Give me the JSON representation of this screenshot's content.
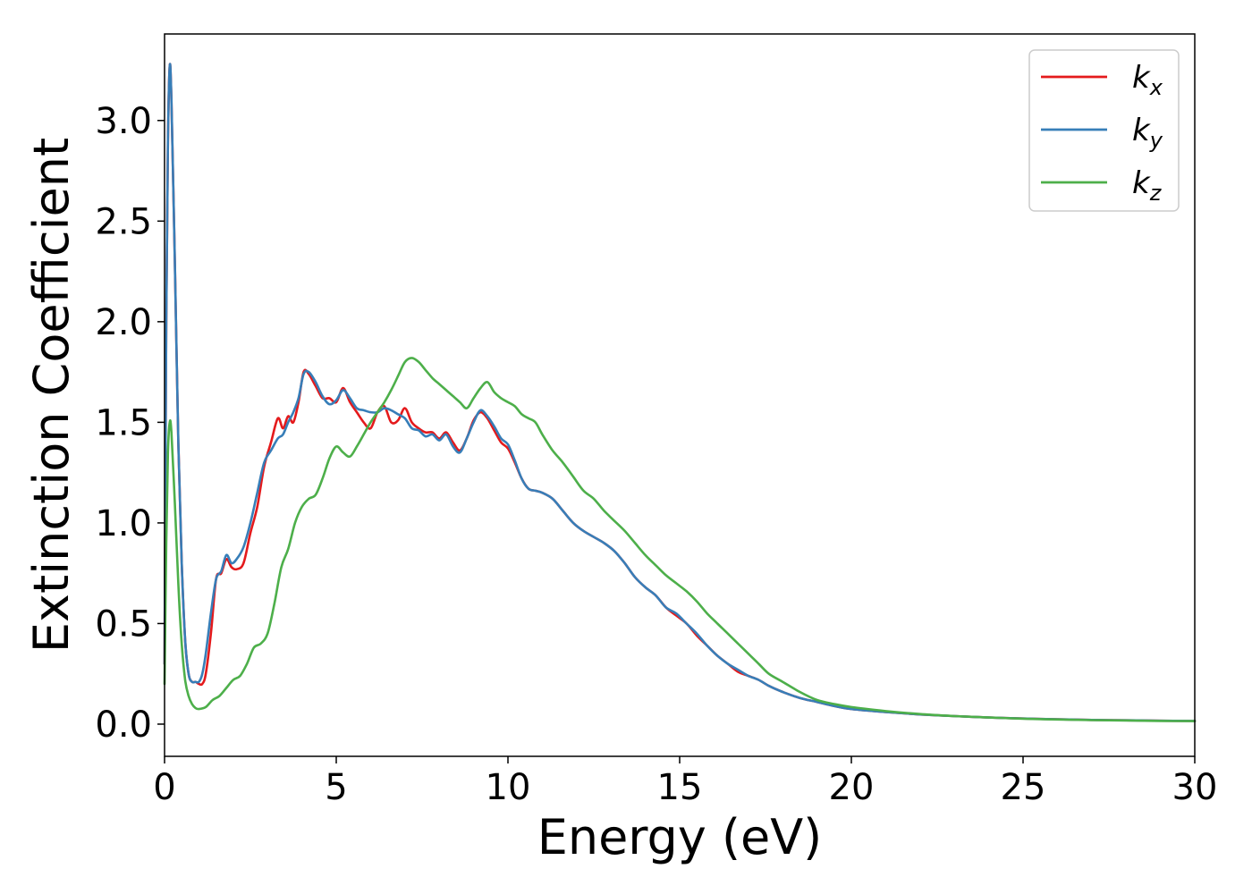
{
  "chart_data": {
    "type": "line",
    "title": "",
    "xlabel": "Energy (eV)",
    "ylabel": "Extinction Coefficient",
    "xlim": [
      0,
      30
    ],
    "ylim": [
      -0.16,
      3.43
    ],
    "xticks": [
      0,
      5,
      10,
      15,
      20,
      25,
      30
    ],
    "xtick_labels": [
      "0",
      "5",
      "10",
      "15",
      "20",
      "25",
      "30"
    ],
    "yticks": [
      0.0,
      0.5,
      1.0,
      1.5,
      2.0,
      2.5,
      3.0
    ],
    "ytick_labels": [
      "0.0",
      "0.5",
      "1.0",
      "1.5",
      "2.0",
      "2.5",
      "3.0"
    ],
    "grid": false,
    "legend_position": "top-right",
    "series": [
      {
        "name": "k",
        "subscript": "x",
        "color": "#e41a1c",
        "points": [
          [
            0,
            0.3
          ],
          [
            0.05,
            2.0
          ],
          [
            0.1,
            2.9
          ],
          [
            0.15,
            3.27
          ],
          [
            0.2,
            3.1
          ],
          [
            0.3,
            2.3
          ],
          [
            0.4,
            1.4
          ],
          [
            0.5,
            0.8
          ],
          [
            0.6,
            0.42
          ],
          [
            0.7,
            0.25
          ],
          [
            0.8,
            0.21
          ],
          [
            0.9,
            0.21
          ],
          [
            1.0,
            0.2
          ],
          [
            1.1,
            0.2
          ],
          [
            1.2,
            0.25
          ],
          [
            1.35,
            0.45
          ],
          [
            1.5,
            0.72
          ],
          [
            1.65,
            0.75
          ],
          [
            1.8,
            0.82
          ],
          [
            1.95,
            0.78
          ],
          [
            2.1,
            0.77
          ],
          [
            2.3,
            0.8
          ],
          [
            2.5,
            0.95
          ],
          [
            2.7,
            1.08
          ],
          [
            2.9,
            1.28
          ],
          [
            3.1,
            1.4
          ],
          [
            3.3,
            1.52
          ],
          [
            3.45,
            1.47
          ],
          [
            3.6,
            1.53
          ],
          [
            3.75,
            1.5
          ],
          [
            3.9,
            1.6
          ],
          [
            4.05,
            1.75
          ],
          [
            4.2,
            1.74
          ],
          [
            4.4,
            1.68
          ],
          [
            4.6,
            1.62
          ],
          [
            4.8,
            1.62
          ],
          [
            5.0,
            1.6
          ],
          [
            5.2,
            1.67
          ],
          [
            5.4,
            1.6
          ],
          [
            5.6,
            1.55
          ],
          [
            5.8,
            1.5
          ],
          [
            6.0,
            1.47
          ],
          [
            6.2,
            1.55
          ],
          [
            6.4,
            1.58
          ],
          [
            6.6,
            1.5
          ],
          [
            6.8,
            1.51
          ],
          [
            7.0,
            1.57
          ],
          [
            7.2,
            1.5
          ],
          [
            7.4,
            1.47
          ],
          [
            7.6,
            1.45
          ],
          [
            7.8,
            1.45
          ],
          [
            8.0,
            1.42
          ],
          [
            8.2,
            1.45
          ],
          [
            8.4,
            1.4
          ],
          [
            8.6,
            1.36
          ],
          [
            8.8,
            1.42
          ],
          [
            9.0,
            1.51
          ],
          [
            9.2,
            1.55
          ],
          [
            9.4,
            1.52
          ],
          [
            9.6,
            1.46
          ],
          [
            9.8,
            1.4
          ],
          [
            10.0,
            1.37
          ],
          [
            10.2,
            1.3
          ],
          [
            10.4,
            1.22
          ],
          [
            10.6,
            1.17
          ],
          [
            10.8,
            1.16
          ],
          [
            11.0,
            1.15
          ],
          [
            11.3,
            1.12
          ],
          [
            11.6,
            1.06
          ],
          [
            11.9,
            1.0
          ],
          [
            12.2,
            0.96
          ],
          [
            12.5,
            0.93
          ],
          [
            12.8,
            0.9
          ],
          [
            13.1,
            0.86
          ],
          [
            13.4,
            0.8
          ],
          [
            13.7,
            0.73
          ],
          [
            14.0,
            0.68
          ],
          [
            14.3,
            0.64
          ],
          [
            14.6,
            0.58
          ],
          [
            14.9,
            0.54
          ],
          [
            15.2,
            0.5
          ],
          [
            15.5,
            0.44
          ],
          [
            15.8,
            0.39
          ],
          [
            16.1,
            0.34
          ],
          [
            16.4,
            0.3
          ],
          [
            16.7,
            0.26
          ],
          [
            17.0,
            0.24
          ],
          [
            17.3,
            0.22
          ],
          [
            17.6,
            0.19
          ],
          [
            18.0,
            0.16
          ],
          [
            18.5,
            0.13
          ],
          [
            19.0,
            0.11
          ],
          [
            19.5,
            0.09
          ],
          [
            20.0,
            0.075
          ],
          [
            21,
            0.06
          ],
          [
            22,
            0.048
          ],
          [
            23,
            0.04
          ],
          [
            24,
            0.033
          ],
          [
            25,
            0.028
          ],
          [
            26,
            0.024
          ],
          [
            27,
            0.021
          ],
          [
            28,
            0.019
          ],
          [
            29,
            0.017
          ],
          [
            30,
            0.016
          ]
        ]
      },
      {
        "name": "k",
        "subscript": "y",
        "color": "#377eb8",
        "points": [
          [
            0,
            0.3
          ],
          [
            0.05,
            2.0
          ],
          [
            0.1,
            2.9
          ],
          [
            0.15,
            3.27
          ],
          [
            0.2,
            3.1
          ],
          [
            0.3,
            2.3
          ],
          [
            0.4,
            1.4
          ],
          [
            0.5,
            0.8
          ],
          [
            0.6,
            0.42
          ],
          [
            0.7,
            0.25
          ],
          [
            0.8,
            0.21
          ],
          [
            0.9,
            0.21
          ],
          [
            1.0,
            0.21
          ],
          [
            1.1,
            0.25
          ],
          [
            1.2,
            0.35
          ],
          [
            1.35,
            0.55
          ],
          [
            1.5,
            0.72
          ],
          [
            1.65,
            0.76
          ],
          [
            1.8,
            0.84
          ],
          [
            1.95,
            0.8
          ],
          [
            2.1,
            0.82
          ],
          [
            2.3,
            0.88
          ],
          [
            2.5,
            1.0
          ],
          [
            2.7,
            1.15
          ],
          [
            2.9,
            1.3
          ],
          [
            3.1,
            1.36
          ],
          [
            3.3,
            1.42
          ],
          [
            3.45,
            1.44
          ],
          [
            3.6,
            1.5
          ],
          [
            3.75,
            1.55
          ],
          [
            3.9,
            1.62
          ],
          [
            4.05,
            1.74
          ],
          [
            4.2,
            1.75
          ],
          [
            4.4,
            1.7
          ],
          [
            4.6,
            1.63
          ],
          [
            4.8,
            1.59
          ],
          [
            5.0,
            1.61
          ],
          [
            5.2,
            1.66
          ],
          [
            5.4,
            1.62
          ],
          [
            5.6,
            1.57
          ],
          [
            5.8,
            1.56
          ],
          [
            6.0,
            1.55
          ],
          [
            6.2,
            1.55
          ],
          [
            6.4,
            1.57
          ],
          [
            6.6,
            1.56
          ],
          [
            6.8,
            1.54
          ],
          [
            7.0,
            1.52
          ],
          [
            7.2,
            1.47
          ],
          [
            7.4,
            1.46
          ],
          [
            7.6,
            1.43
          ],
          [
            7.8,
            1.44
          ],
          [
            8.0,
            1.41
          ],
          [
            8.2,
            1.44
          ],
          [
            8.4,
            1.38
          ],
          [
            8.6,
            1.35
          ],
          [
            8.8,
            1.42
          ],
          [
            9.0,
            1.5
          ],
          [
            9.2,
            1.56
          ],
          [
            9.4,
            1.53
          ],
          [
            9.6,
            1.48
          ],
          [
            9.8,
            1.42
          ],
          [
            10.0,
            1.39
          ],
          [
            10.2,
            1.31
          ],
          [
            10.4,
            1.22
          ],
          [
            10.6,
            1.17
          ],
          [
            10.8,
            1.16
          ],
          [
            11.0,
            1.15
          ],
          [
            11.3,
            1.12
          ],
          [
            11.6,
            1.06
          ],
          [
            11.9,
            1.0
          ],
          [
            12.2,
            0.96
          ],
          [
            12.5,
            0.93
          ],
          [
            12.8,
            0.9
          ],
          [
            13.1,
            0.86
          ],
          [
            13.4,
            0.8
          ],
          [
            13.7,
            0.73
          ],
          [
            14.0,
            0.68
          ],
          [
            14.3,
            0.64
          ],
          [
            14.6,
            0.58
          ],
          [
            14.9,
            0.55
          ],
          [
            15.2,
            0.5
          ],
          [
            15.5,
            0.45
          ],
          [
            15.8,
            0.39
          ],
          [
            16.1,
            0.34
          ],
          [
            16.4,
            0.3
          ],
          [
            16.7,
            0.27
          ],
          [
            17.0,
            0.24
          ],
          [
            17.3,
            0.22
          ],
          [
            17.6,
            0.19
          ],
          [
            18.0,
            0.16
          ],
          [
            18.5,
            0.13
          ],
          [
            19.0,
            0.11
          ],
          [
            19.5,
            0.09
          ],
          [
            20.0,
            0.075
          ],
          [
            21,
            0.06
          ],
          [
            22,
            0.048
          ],
          [
            23,
            0.04
          ],
          [
            24,
            0.033
          ],
          [
            25,
            0.028
          ],
          [
            26,
            0.024
          ],
          [
            27,
            0.021
          ],
          [
            28,
            0.019
          ],
          [
            29,
            0.017
          ],
          [
            30,
            0.016
          ]
        ]
      },
      {
        "name": "k",
        "subscript": "z",
        "color": "#4daf4a",
        "points": [
          [
            0,
            0.2
          ],
          [
            0.05,
            0.9
          ],
          [
            0.1,
            1.35
          ],
          [
            0.15,
            1.5
          ],
          [
            0.2,
            1.45
          ],
          [
            0.3,
            1.1
          ],
          [
            0.4,
            0.7
          ],
          [
            0.5,
            0.4
          ],
          [
            0.6,
            0.22
          ],
          [
            0.7,
            0.14
          ],
          [
            0.8,
            0.1
          ],
          [
            0.9,
            0.08
          ],
          [
            1.0,
            0.075
          ],
          [
            1.2,
            0.085
          ],
          [
            1.4,
            0.12
          ],
          [
            1.6,
            0.14
          ],
          [
            1.8,
            0.18
          ],
          [
            2.0,
            0.22
          ],
          [
            2.2,
            0.24
          ],
          [
            2.4,
            0.3
          ],
          [
            2.6,
            0.38
          ],
          [
            2.8,
            0.4
          ],
          [
            3.0,
            0.45
          ],
          [
            3.2,
            0.6
          ],
          [
            3.4,
            0.78
          ],
          [
            3.6,
            0.87
          ],
          [
            3.8,
            1.0
          ],
          [
            4.0,
            1.08
          ],
          [
            4.2,
            1.12
          ],
          [
            4.4,
            1.14
          ],
          [
            4.6,
            1.22
          ],
          [
            4.8,
            1.32
          ],
          [
            5.0,
            1.38
          ],
          [
            5.2,
            1.35
          ],
          [
            5.4,
            1.33
          ],
          [
            5.6,
            1.38
          ],
          [
            5.8,
            1.44
          ],
          [
            6.0,
            1.5
          ],
          [
            6.2,
            1.55
          ],
          [
            6.4,
            1.6
          ],
          [
            6.6,
            1.66
          ],
          [
            6.8,
            1.73
          ],
          [
            7.0,
            1.8
          ],
          [
            7.2,
            1.82
          ],
          [
            7.4,
            1.8
          ],
          [
            7.6,
            1.76
          ],
          [
            7.8,
            1.72
          ],
          [
            8.0,
            1.69
          ],
          [
            8.2,
            1.66
          ],
          [
            8.4,
            1.63
          ],
          [
            8.6,
            1.6
          ],
          [
            8.8,
            1.57
          ],
          [
            9.0,
            1.62
          ],
          [
            9.2,
            1.67
          ],
          [
            9.4,
            1.7
          ],
          [
            9.6,
            1.65
          ],
          [
            9.8,
            1.62
          ],
          [
            10.0,
            1.6
          ],
          [
            10.2,
            1.58
          ],
          [
            10.4,
            1.54
          ],
          [
            10.6,
            1.52
          ],
          [
            10.8,
            1.5
          ],
          [
            11.0,
            1.44
          ],
          [
            11.3,
            1.36
          ],
          [
            11.6,
            1.3
          ],
          [
            11.9,
            1.23
          ],
          [
            12.2,
            1.16
          ],
          [
            12.5,
            1.12
          ],
          [
            12.8,
            1.06
          ],
          [
            13.1,
            1.01
          ],
          [
            13.4,
            0.96
          ],
          [
            13.7,
            0.9
          ],
          [
            14.0,
            0.84
          ],
          [
            14.3,
            0.79
          ],
          [
            14.6,
            0.74
          ],
          [
            14.9,
            0.7
          ],
          [
            15.2,
            0.66
          ],
          [
            15.5,
            0.61
          ],
          [
            15.8,
            0.55
          ],
          [
            16.1,
            0.5
          ],
          [
            16.4,
            0.45
          ],
          [
            16.7,
            0.4
          ],
          [
            17.0,
            0.35
          ],
          [
            17.3,
            0.3
          ],
          [
            17.6,
            0.25
          ],
          [
            18.0,
            0.21
          ],
          [
            18.5,
            0.16
          ],
          [
            19.0,
            0.12
          ],
          [
            19.5,
            0.1
          ],
          [
            20.0,
            0.085
          ],
          [
            21,
            0.065
          ],
          [
            22,
            0.05
          ],
          [
            23,
            0.04
          ],
          [
            24,
            0.033
          ],
          [
            25,
            0.027
          ],
          [
            26,
            0.023
          ],
          [
            27,
            0.02
          ],
          [
            28,
            0.018
          ],
          [
            29,
            0.016
          ],
          [
            30,
            0.015
          ]
        ]
      }
    ]
  }
}
